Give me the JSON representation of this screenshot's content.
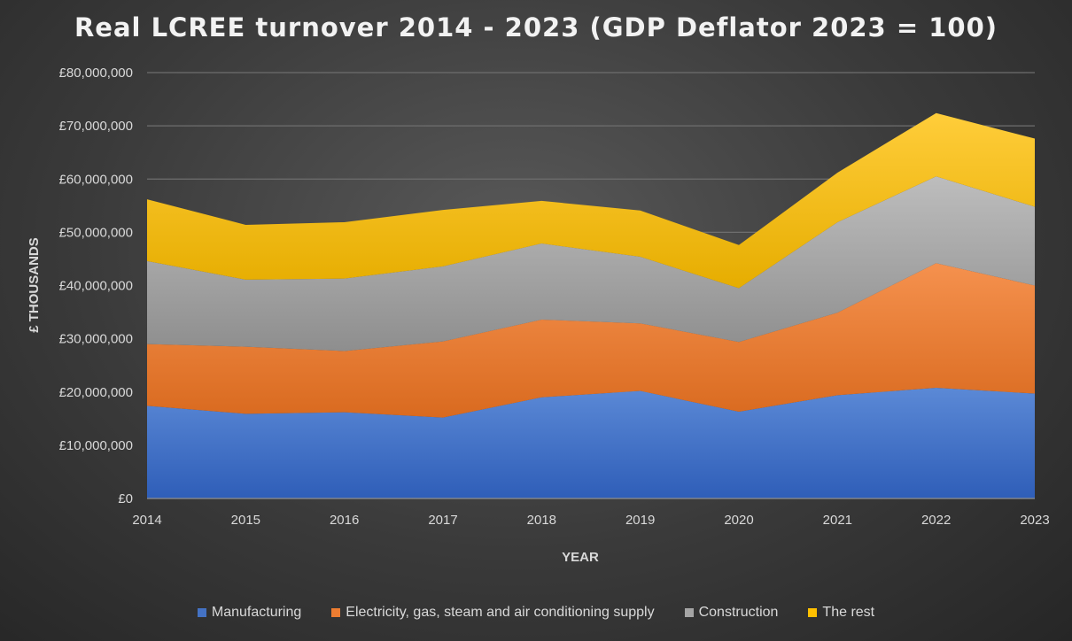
{
  "chart_data": {
    "type": "area",
    "stacked": true,
    "title": "Real LCREE turnover 2014 - 2023 (GDP Deflator 2023 = 100)",
    "xlabel": "YEAR",
    "ylabel": "£ THOUSANDS",
    "x": [
      "2014",
      "2015",
      "2016",
      "2017",
      "2018",
      "2019",
      "2020",
      "2021",
      "2022",
      "2023"
    ],
    "ylim": [
      0,
      80000000
    ],
    "yticks": [
      "£0",
      "£10,000,000",
      "£20,000,000",
      "£30,000,000",
      "£40,000,000",
      "£50,000,000",
      "£60,000,000",
      "£70,000,000",
      "£80,000,000"
    ],
    "grid": true,
    "legend_position": "bottom",
    "series": [
      {
        "name": "Manufacturing",
        "color": "#4472C4",
        "values": [
          17400000,
          15900000,
          16200000,
          15200000,
          19000000,
          20200000,
          16300000,
          19400000,
          20800000,
          19700000
        ]
      },
      {
        "name": "Electricity, gas, steam and air conditioning supply",
        "color": "#ED7D31",
        "values": [
          11600000,
          12600000,
          11500000,
          14300000,
          14600000,
          12700000,
          13100000,
          15500000,
          23400000,
          20300000
        ]
      },
      {
        "name": "Construction",
        "color": "#A5A5A5",
        "values": [
          15600000,
          12600000,
          13600000,
          14100000,
          14300000,
          12500000,
          10100000,
          17000000,
          16300000,
          14800000
        ]
      },
      {
        "name": "The rest",
        "color": "#FFC000",
        "values": [
          11600000,
          10300000,
          10600000,
          10600000,
          8000000,
          8700000,
          8100000,
          9300000,
          11900000,
          12800000
        ]
      }
    ]
  }
}
